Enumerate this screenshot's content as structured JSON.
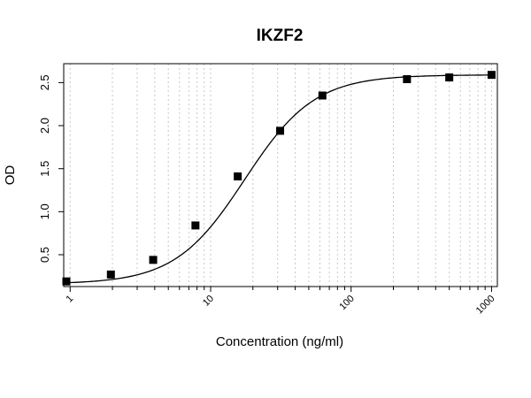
{
  "chart_data": {
    "type": "scatter",
    "title": "IKZF2",
    "xlabel": "Concentration (ng/ml)",
    "ylabel": "OD",
    "x_scale": "log",
    "xlim": [
      0.9,
      1100
    ],
    "ylim": [
      0.13,
      2.72
    ],
    "x_ticks": [
      1,
      10,
      100,
      1000
    ],
    "x_tick_labels": [
      "1",
      "10",
      "100",
      "1000"
    ],
    "y_ticks": [
      0.5,
      1.0,
      1.5,
      2.0,
      2.5
    ],
    "y_tick_labels": [
      "0.5",
      "1.0",
      "1.5",
      "2.0",
      "2.5"
    ],
    "grid": "vertical dotted at log minor ticks",
    "marker": "filled square",
    "fit_line": "four-parameter logistic curve through points",
    "points": {
      "x": [
        0.94,
        1.95,
        3.9,
        7.8,
        15.6,
        31.25,
        62.5,
        250,
        500,
        1000
      ],
      "y": [
        0.19,
        0.27,
        0.44,
        0.84,
        1.41,
        1.94,
        2.35,
        2.54,
        2.56,
        2.59
      ]
    },
    "fit": {
      "bottom": 0.16,
      "top": 2.59,
      "ec50": 17.5,
      "hill": 1.75
    },
    "colors": {
      "marker": "#000000",
      "curve": "#000000",
      "grid": "#c8c8c8"
    }
  }
}
